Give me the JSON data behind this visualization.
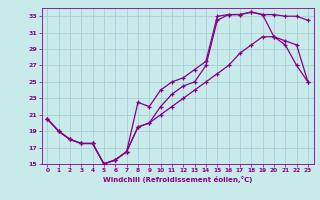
{
  "xlabel": "Windchill (Refroidissement éolien,°C)",
  "xlim": [
    -0.5,
    23.5
  ],
  "ylim": [
    15,
    34
  ],
  "yticks": [
    15,
    17,
    19,
    21,
    23,
    25,
    27,
    29,
    31,
    33
  ],
  "xticks": [
    0,
    1,
    2,
    3,
    4,
    5,
    6,
    7,
    8,
    9,
    10,
    11,
    12,
    13,
    14,
    15,
    16,
    17,
    18,
    19,
    20,
    21,
    22,
    23
  ],
  "bg_color": "#c8eaea",
  "grid_color": "#a8d0d0",
  "line_color": "#880088",
  "curve1_x": [
    0,
    1,
    2,
    3,
    4,
    5,
    6,
    7,
    8,
    9,
    10,
    11,
    12,
    13,
    14,
    15,
    16,
    17,
    18,
    19,
    20,
    21,
    22,
    23
  ],
  "curve1_y": [
    20.5,
    19.0,
    18.0,
    17.5,
    17.5,
    15.0,
    15.5,
    16.5,
    19.5,
    20.0,
    22.0,
    23.5,
    24.5,
    25.0,
    27.0,
    32.5,
    33.2,
    33.2,
    33.5,
    33.2,
    33.2,
    33.0,
    33.0,
    32.5
  ],
  "curve2_x": [
    0,
    1,
    2,
    3,
    4,
    5,
    6,
    7,
    8,
    9,
    10,
    11,
    12,
    13,
    14,
    15,
    16,
    17,
    18,
    19,
    20,
    21,
    22,
    23
  ],
  "curve2_y": [
    20.5,
    19.0,
    18.0,
    17.5,
    17.5,
    15.0,
    15.5,
    16.5,
    22.5,
    22.0,
    24.0,
    25.0,
    25.5,
    26.5,
    27.5,
    33.0,
    33.2,
    33.2,
    33.5,
    33.2,
    30.5,
    29.5,
    27.0,
    25.0
  ],
  "curve3_x": [
    0,
    1,
    2,
    3,
    4,
    5,
    6,
    7,
    8,
    9,
    10,
    11,
    12,
    13,
    14,
    15,
    16,
    17,
    18,
    19,
    20,
    21,
    22,
    23
  ],
  "curve3_y": [
    20.5,
    19.0,
    18.0,
    17.5,
    17.5,
    15.0,
    15.5,
    16.5,
    19.5,
    20.0,
    21.0,
    22.0,
    23.0,
    24.0,
    25.0,
    26.0,
    27.0,
    28.5,
    29.5,
    30.5,
    30.5,
    30.0,
    29.5,
    25.0
  ]
}
